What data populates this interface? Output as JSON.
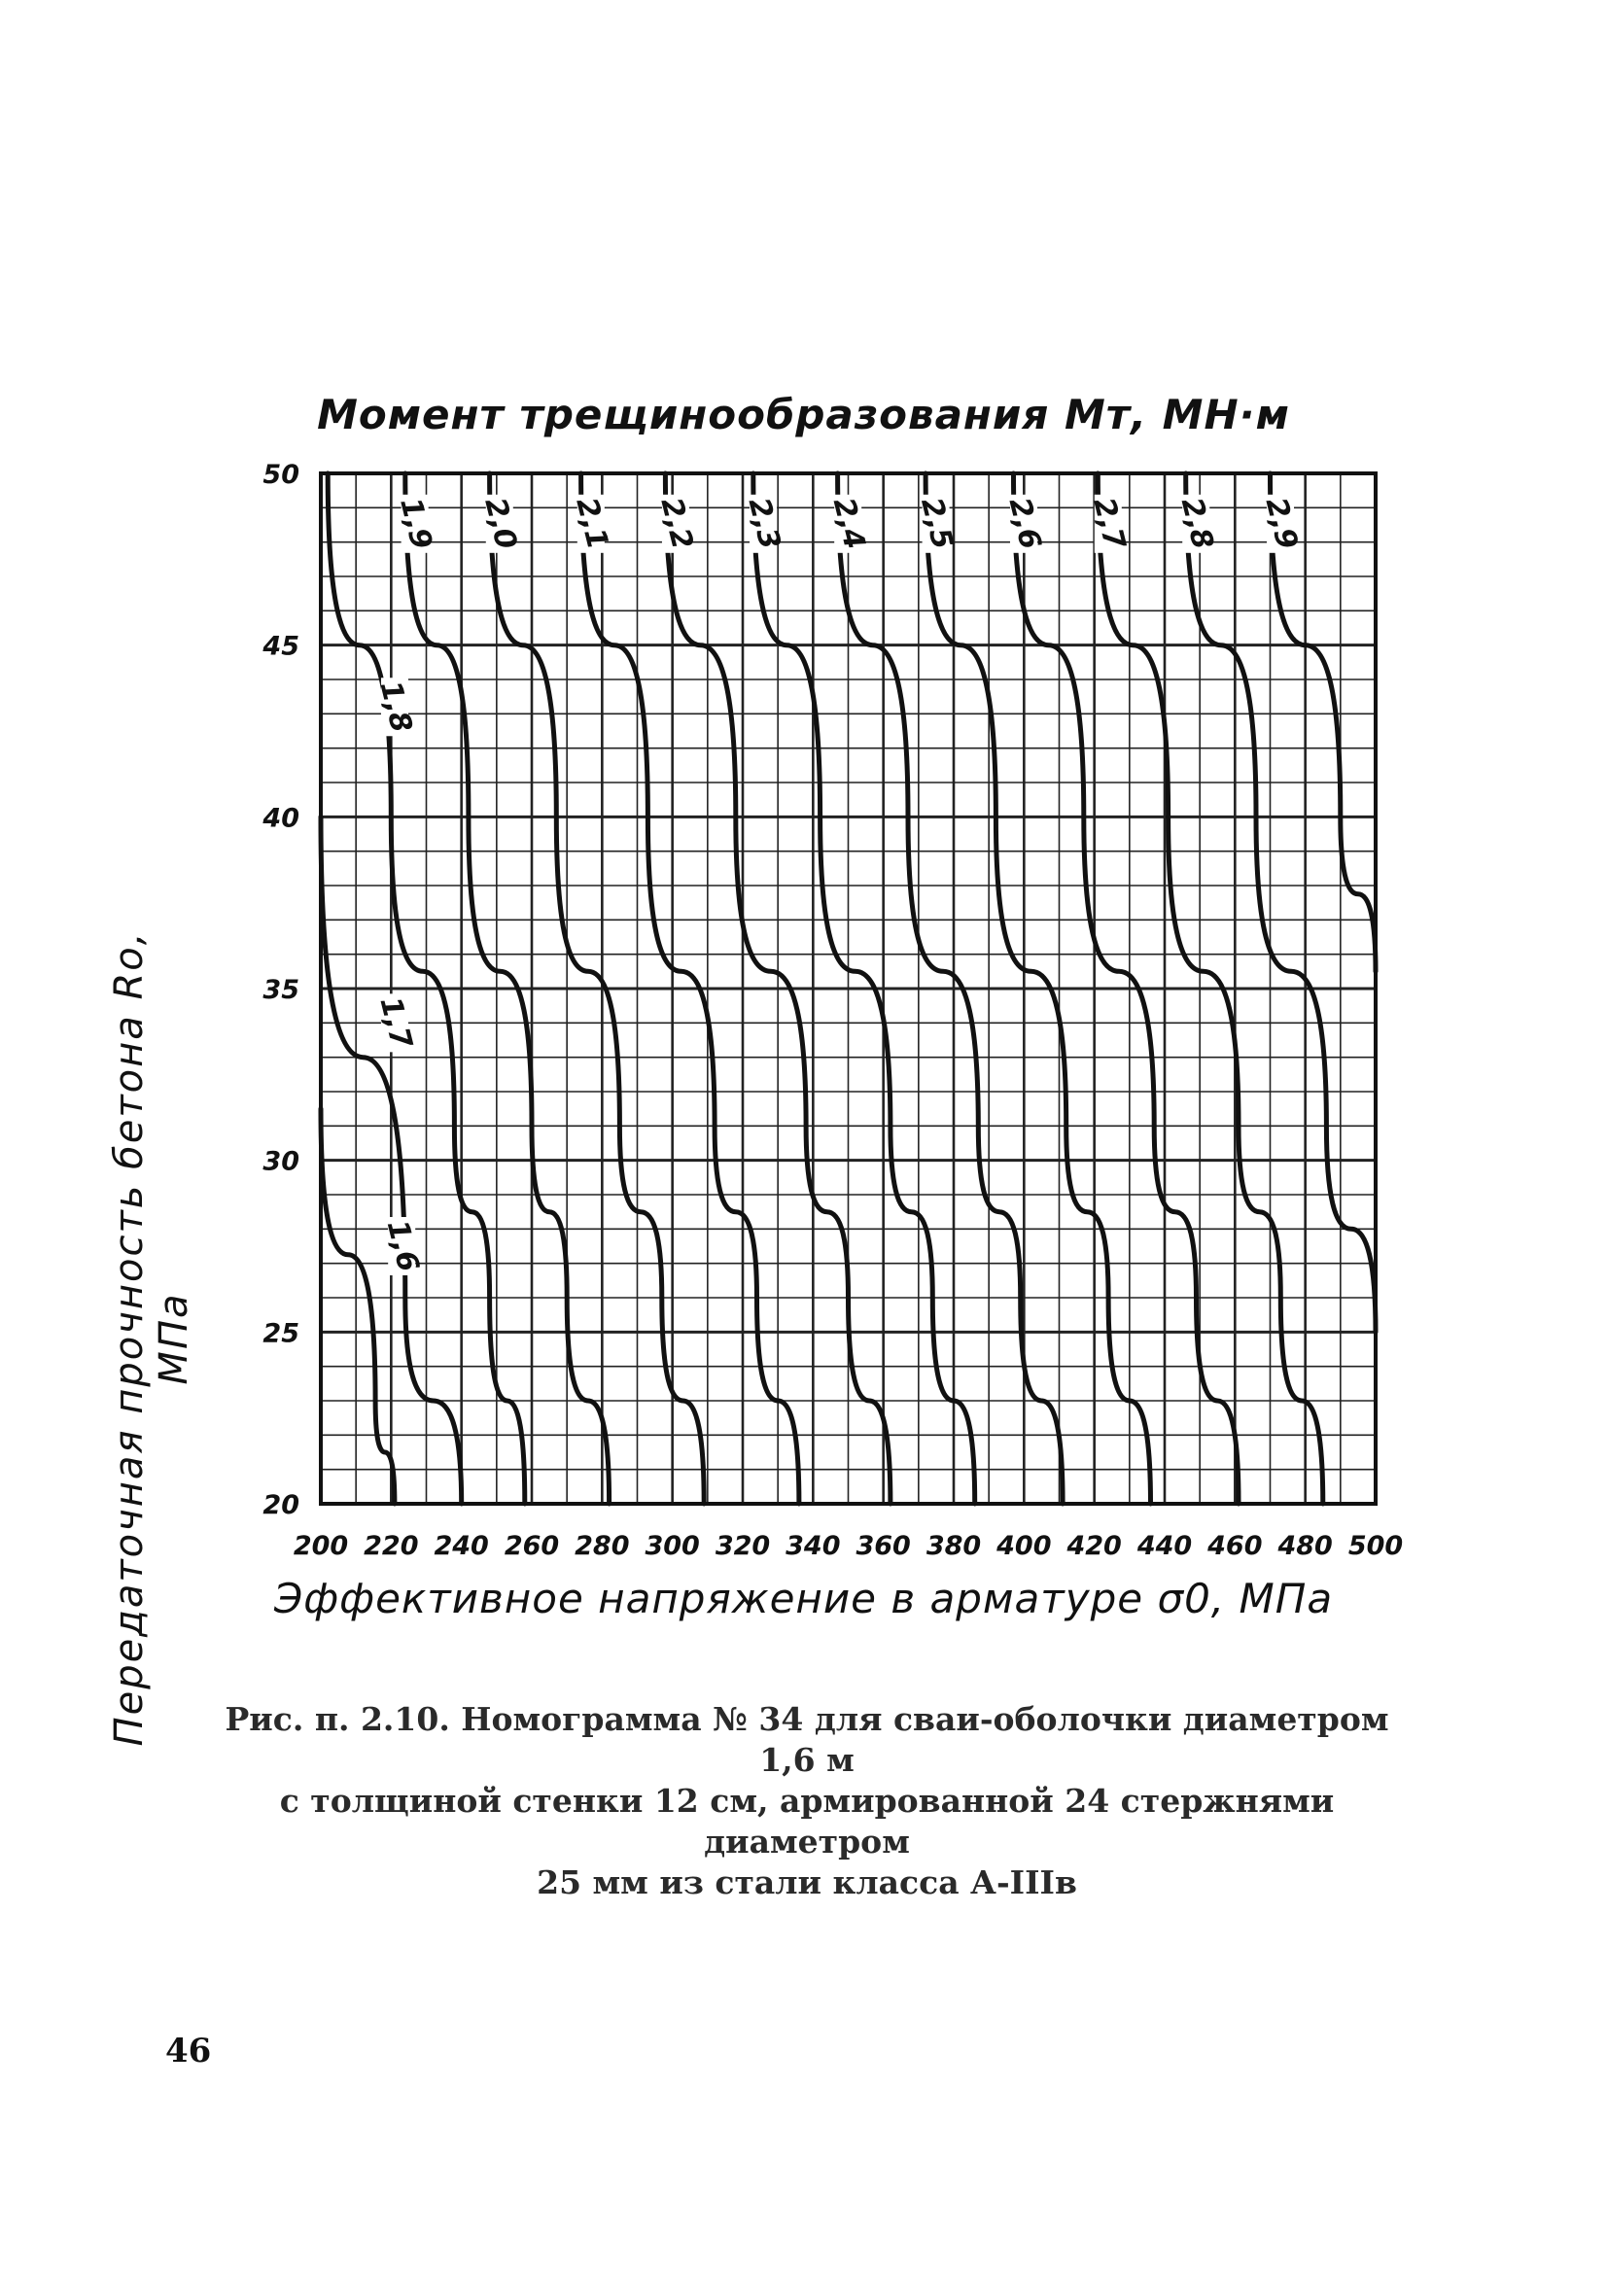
{
  "chart_data": {
    "type": "line",
    "title": "Момент трещинообразования  Мт, МН·м",
    "xlabel": "Эффективное напряжение в арматуре σ0, МПа",
    "ylabel": "Передаточная прочность бетона Ro, МПа",
    "xlim": [
      200,
      500
    ],
    "ylim": [
      20,
      50
    ],
    "x_ticks": [
      "200",
      "220",
      "240",
      "260",
      "280",
      "300",
      "320",
      "340",
      "360",
      "380",
      "400",
      "420",
      "440",
      "460",
      "480",
      "500"
    ],
    "y_ticks": [
      "20",
      "25",
      "30",
      "35",
      "40",
      "45",
      "50"
    ],
    "grid": true,
    "series": [
      {
        "name": "1,6",
        "points": [
          [
            200,
            31.5
          ],
          [
            215.5,
            23
          ],
          [
            221,
            20
          ]
        ]
      },
      {
        "name": "1,7",
        "points": [
          [
            200,
            40
          ],
          [
            224,
            26
          ],
          [
            240,
            20
          ]
        ]
      },
      {
        "name": "1,8",
        "points": [
          [
            202,
            50
          ],
          [
            220,
            40
          ],
          [
            238,
            31
          ],
          [
            248,
            26
          ],
          [
            258,
            20
          ]
        ]
      },
      {
        "name": "1,9",
        "points": [
          [
            224,
            50
          ],
          [
            242,
            40
          ],
          [
            260,
            31
          ],
          [
            270,
            26
          ],
          [
            282,
            20
          ]
        ]
      },
      {
        "name": "2,0",
        "points": [
          [
            248,
            50
          ],
          [
            267,
            40
          ],
          [
            285,
            31
          ],
          [
            297,
            26
          ],
          [
            309,
            20
          ]
        ]
      },
      {
        "name": "2,1",
        "points": [
          [
            274,
            50
          ],
          [
            293,
            40
          ],
          [
            312,
            31
          ],
          [
            324,
            26
          ],
          [
            336,
            20
          ]
        ]
      },
      {
        "name": "2,2",
        "points": [
          [
            298,
            50
          ],
          [
            318,
            40
          ],
          [
            338,
            31
          ],
          [
            350,
            26
          ],
          [
            362,
            20
          ]
        ]
      },
      {
        "name": "2,3",
        "points": [
          [
            323,
            50
          ],
          [
            342,
            40
          ],
          [
            362,
            31
          ],
          [
            374,
            26
          ],
          [
            386,
            20
          ]
        ]
      },
      {
        "name": "2,4",
        "points": [
          [
            347,
            50
          ],
          [
            367,
            40
          ],
          [
            387,
            31
          ],
          [
            399,
            26
          ],
          [
            411,
            20
          ]
        ]
      },
      {
        "name": "2,5",
        "points": [
          [
            372,
            50
          ],
          [
            392,
            40
          ],
          [
            412,
            31
          ],
          [
            424,
            26
          ],
          [
            436,
            20
          ]
        ]
      },
      {
        "name": "2,6",
        "points": [
          [
            397,
            50
          ],
          [
            417,
            40
          ],
          [
            437,
            31
          ],
          [
            449,
            26
          ],
          [
            461,
            20
          ]
        ]
      },
      {
        "name": "2,7",
        "points": [
          [
            421,
            50
          ],
          [
            441,
            40
          ],
          [
            461,
            31
          ],
          [
            473,
            26
          ],
          [
            485,
            20
          ]
        ]
      },
      {
        "name": "2,8",
        "points": [
          [
            446,
            50
          ],
          [
            466,
            40
          ],
          [
            486,
            31
          ],
          [
            500,
            25
          ]
        ]
      },
      {
        "name": "2,9",
        "points": [
          [
            470,
            50
          ],
          [
            490,
            40
          ],
          [
            500,
            35.5
          ]
        ]
      }
    ],
    "annotations": [
      "1,6",
      "1,7",
      "1,8",
      "1,9",
      "2,0",
      "2,1",
      "2,2",
      "2,3",
      "2,4",
      "2,5",
      "2,6",
      "2,7",
      "2,8",
      "2,9"
    ]
  },
  "caption": {
    "line1": "Рис. п. 2.10. Номограмма № 34 для сваи-оболочки диаметром 1,6 м",
    "line2": "с толщиной стенки 12 см, армированной 24 стержнями диаметром",
    "line3": "25 мм из стали класса А-IIIв"
  },
  "page": {
    "number": "46"
  }
}
